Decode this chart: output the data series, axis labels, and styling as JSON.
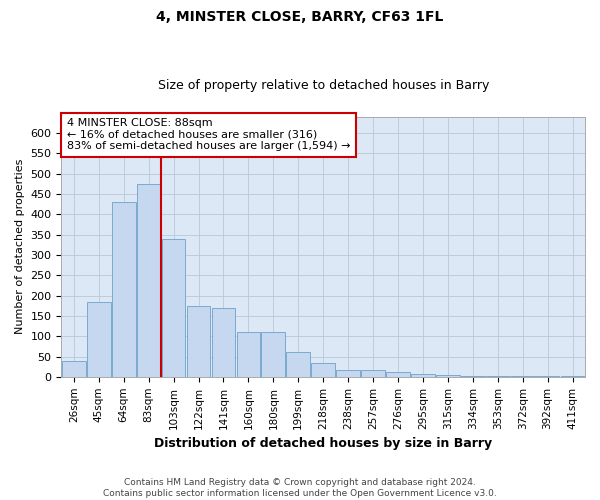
{
  "title": "4, MINSTER CLOSE, BARRY, CF63 1FL",
  "subtitle": "Size of property relative to detached houses in Barry",
  "xlabel": "Distribution of detached houses by size in Barry",
  "ylabel": "Number of detached properties",
  "footer_line1": "Contains HM Land Registry data © Crown copyright and database right 2024.",
  "footer_line2": "Contains public sector information licensed under the Open Government Licence v3.0.",
  "annotation_line1": "4 MINSTER CLOSE: 88sqm",
  "annotation_line2": "← 16% of detached houses are smaller (316)",
  "annotation_line3": "83% of semi-detached houses are larger (1,594) →",
  "bar_color": "#c5d8f0",
  "bar_edge_color": "#7aaad0",
  "vline_color": "#cc0000",
  "vline_x_bin": 3,
  "categories": [
    "26sqm",
    "45sqm",
    "64sqm",
    "83sqm",
    "103sqm",
    "122sqm",
    "141sqm",
    "160sqm",
    "180sqm",
    "199sqm",
    "218sqm",
    "238sqm",
    "257sqm",
    "276sqm",
    "295sqm",
    "315sqm",
    "334sqm",
    "353sqm",
    "372sqm",
    "392sqm",
    "411sqm"
  ],
  "values": [
    40,
    185,
    430,
    475,
    340,
    175,
    170,
    110,
    110,
    60,
    35,
    18,
    18,
    12,
    8,
    4,
    2,
    2,
    2,
    2,
    2
  ],
  "ylim": [
    0,
    640
  ],
  "yticks": [
    0,
    50,
    100,
    150,
    200,
    250,
    300,
    350,
    400,
    450,
    500,
    550,
    600
  ],
  "background_color": "#ffffff",
  "plot_bg_color": "#dce8f5",
  "grid_color": "#b8c8d8",
  "annotation_box_facecolor": "#ffffff",
  "annotation_box_edgecolor": "#cc0000"
}
